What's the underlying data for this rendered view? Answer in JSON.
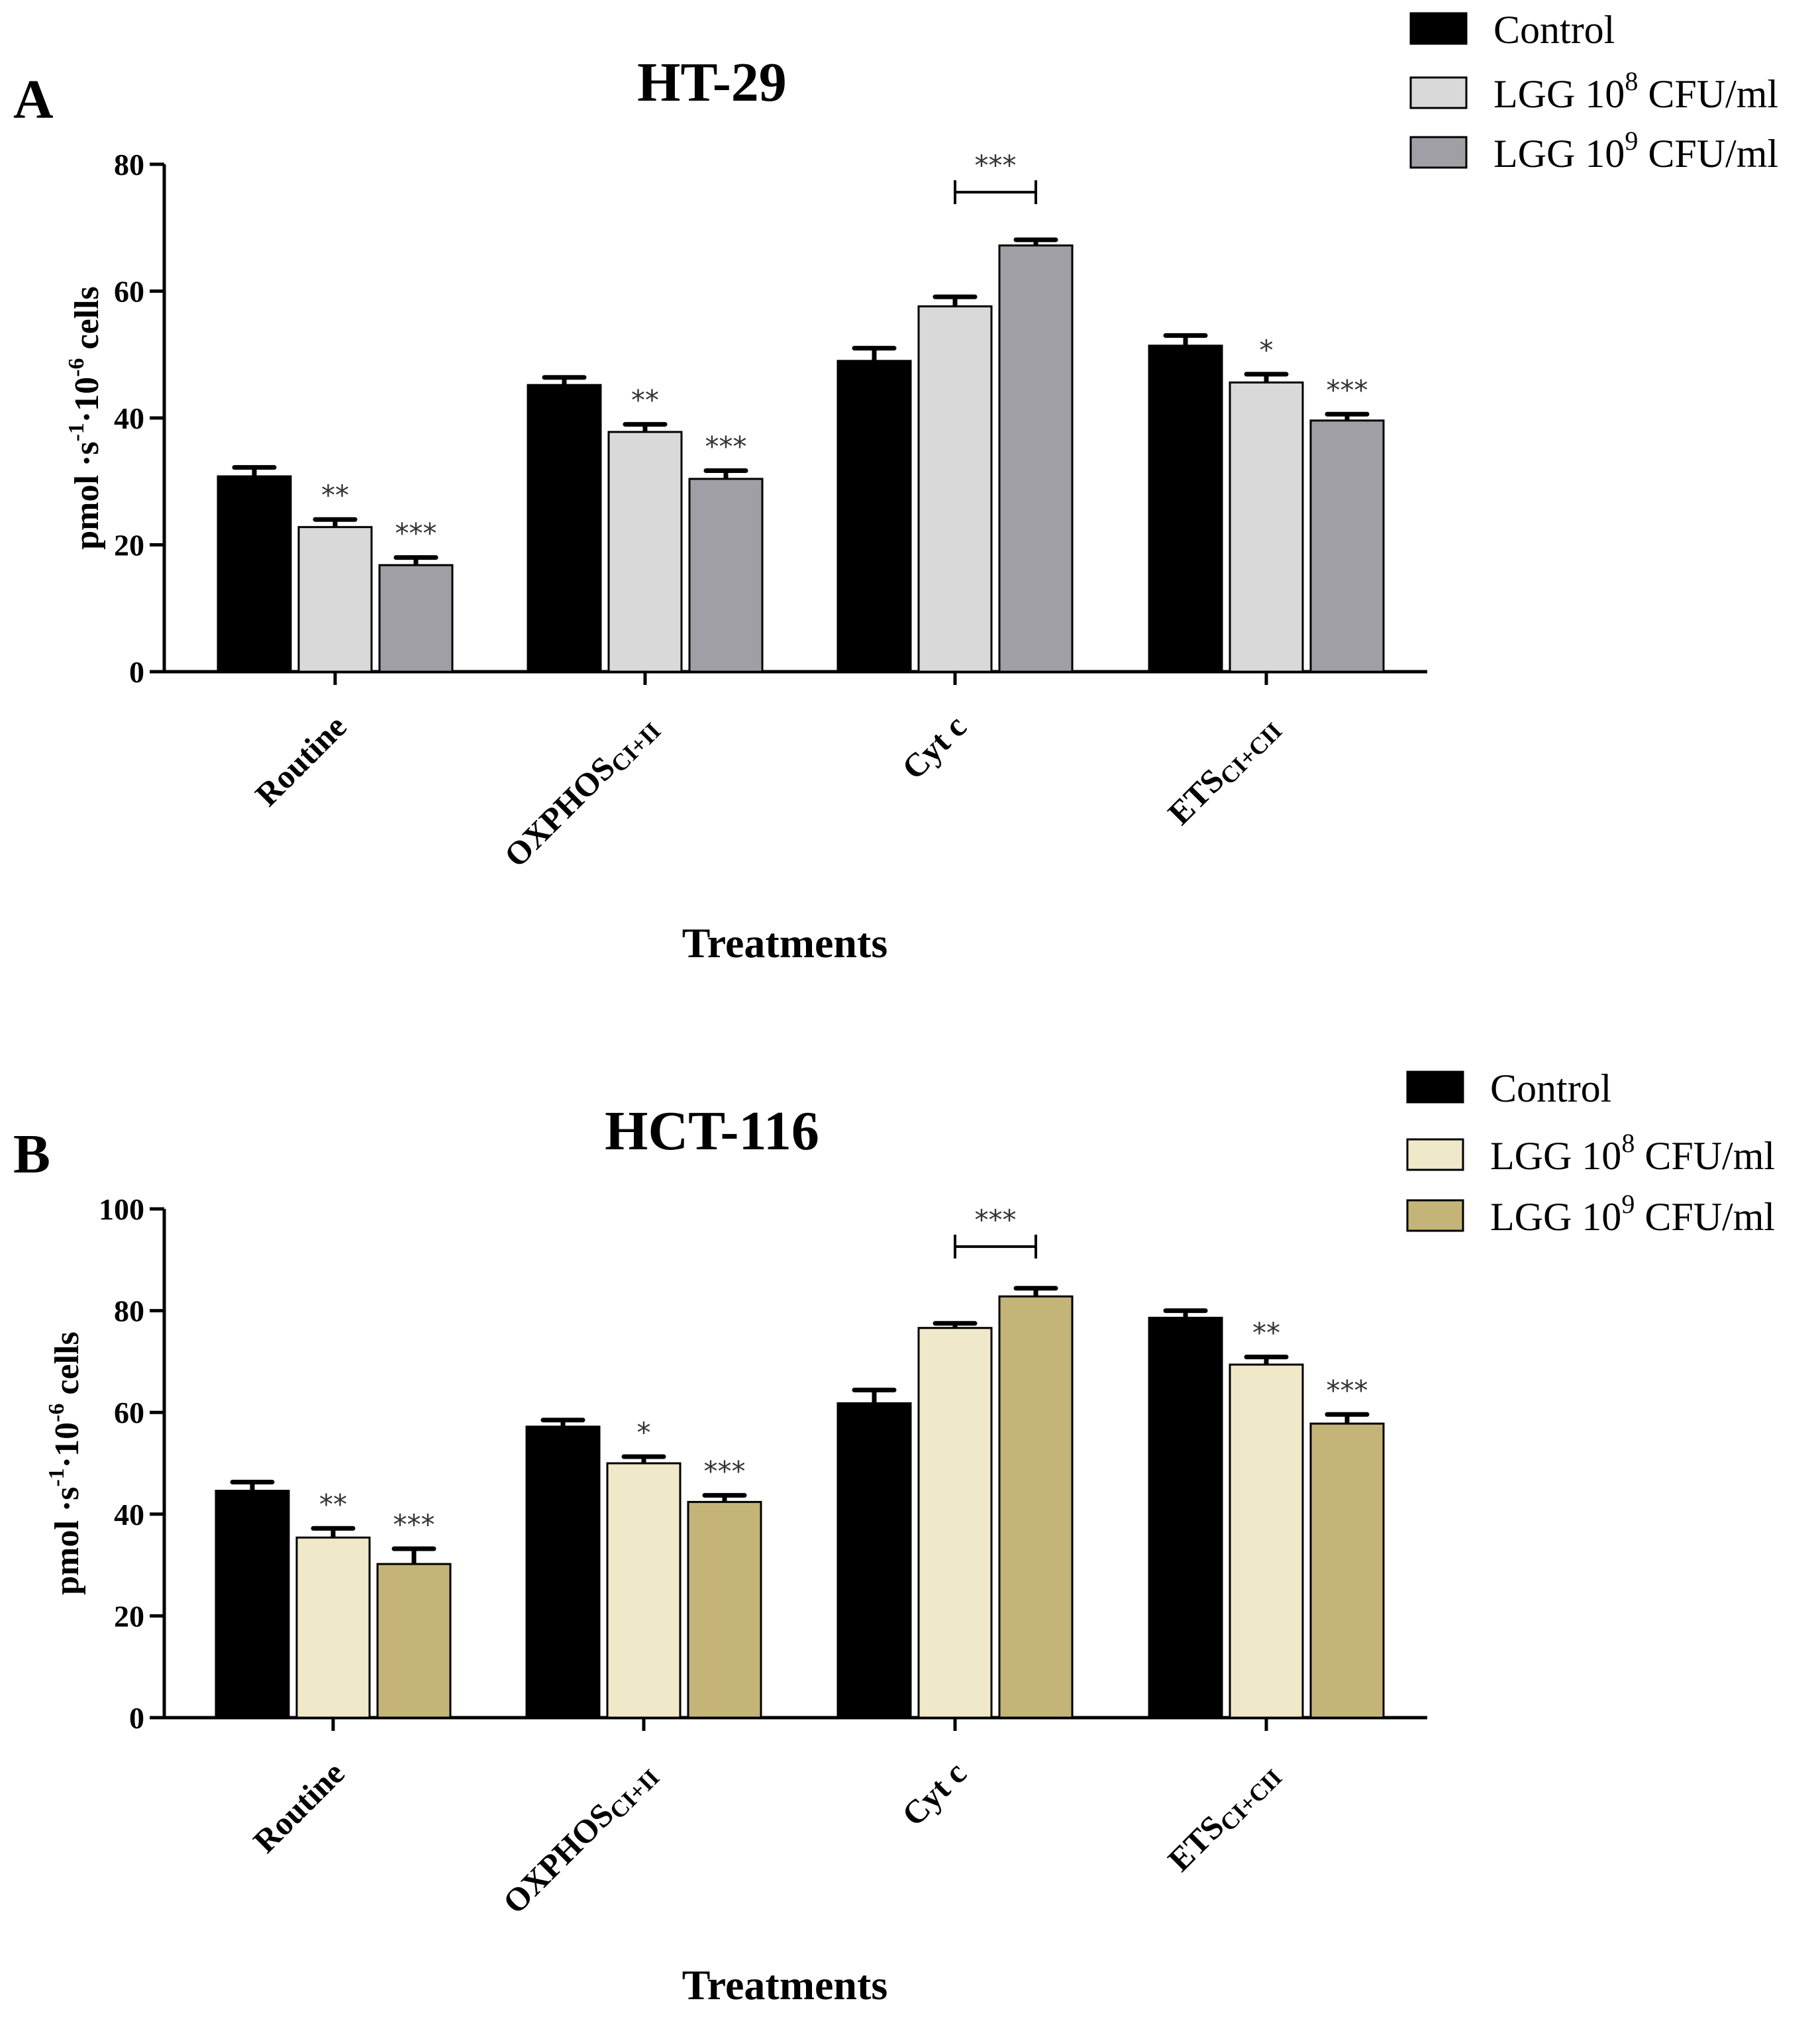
{
  "chart_data": [
    {
      "type": "bar",
      "panel_label": "A",
      "title": "HT-29",
      "xlabel": "Treatments",
      "ylabel": {
        "base": "pmol ·s",
        "exp1": "-1",
        "mid": "·10",
        "exp2": "-6",
        "tail": " cells"
      },
      "ylim": [
        0,
        80
      ],
      "yticks": [
        "0",
        "20",
        "40",
        "60",
        "80"
      ],
      "categories": [
        {
          "main": "Routine",
          "sub": ""
        },
        {
          "main": "OXPHOS",
          "sub": "CI+II"
        },
        {
          "main": "Cyt c",
          "sub": ""
        },
        {
          "main": "ETS",
          "sub": "CI+CII"
        }
      ],
      "series": [
        {
          "name": "Control",
          "legend_base": "Control",
          "legend_exp": "",
          "legend_tail": "",
          "color": "#000000",
          "values": [
            30.8,
            45.2,
            49.0,
            51.4
          ],
          "errors": [
            1.4,
            1.2,
            2.0,
            1.6
          ],
          "sig": [
            "",
            "",
            "",
            ""
          ]
        },
        {
          "name": "LGG 10^8 CFU/ml",
          "legend_base": "LGG 10",
          "legend_exp": "8",
          "legend_tail": " CFU/ml",
          "color": "#d9d9d9",
          "values": [
            22.8,
            37.8,
            57.6,
            45.6
          ],
          "errors": [
            1.2,
            1.2,
            1.5,
            1.3
          ],
          "sig": [
            "**",
            "**",
            "",
            "*"
          ]
        },
        {
          "name": "LGG 10^9 CFU/ml",
          "legend_base": "LGG 10",
          "legend_exp": "9",
          "legend_tail": " CFU/ml",
          "color": "#a09fa6",
          "values": [
            16.8,
            30.4,
            67.2,
            39.6
          ],
          "errors": [
            1.2,
            1.3,
            0.9,
            1.0
          ],
          "sig": [
            "***",
            "***",
            "",
            "***"
          ]
        }
      ],
      "bracket": {
        "category": 2,
        "from_series": 1,
        "to_series": 2,
        "label": "***",
        "y": 75.6
      }
    },
    {
      "type": "bar",
      "panel_label": "B",
      "title": "HCT-116",
      "xlabel": "Treatments",
      "ylabel": {
        "base": "pmol ·s",
        "exp1": "-1",
        "mid": "·10",
        "exp2": "-6",
        "tail": " cells"
      },
      "ylim": [
        0,
        100
      ],
      "yticks": [
        "0",
        "20",
        "40",
        "60",
        "80",
        "100"
      ],
      "categories": [
        {
          "main": "Routine",
          "sub": ""
        },
        {
          "main": "OXPHOS",
          "sub": "CI+II"
        },
        {
          "main": "Cyt c",
          "sub": ""
        },
        {
          "main": "ETS",
          "sub": "CI+CII"
        }
      ],
      "series": [
        {
          "name": "Control",
          "legend_base": "Control",
          "legend_exp": "",
          "legend_tail": "",
          "color": "#000000",
          "values": [
            44.6,
            57.2,
            61.8,
            78.6
          ],
          "errors": [
            1.7,
            1.3,
            2.6,
            1.4
          ],
          "sig": [
            "",
            "",
            "",
            ""
          ]
        },
        {
          "name": "LGG 10^8 CFU/ml",
          "legend_base": "LGG 10",
          "legend_exp": "8",
          "legend_tail": " CFU/ml",
          "color": "#efe8c9",
          "values": [
            35.4,
            50.0,
            76.6,
            69.4
          ],
          "errors": [
            1.8,
            1.3,
            0.9,
            1.5
          ],
          "sig": [
            "**",
            "*",
            "",
            "**"
          ]
        },
        {
          "name": "LGG 10^9 CFU/ml",
          "legend_base": "LGG 10",
          "legend_exp": "9",
          "legend_tail": " CFU/ml",
          "color": "#c4b477",
          "values": [
            30.2,
            42.4,
            82.8,
            57.8
          ],
          "errors": [
            3.0,
            1.3,
            1.6,
            1.8
          ],
          "sig": [
            "***",
            "***",
            "",
            "***"
          ]
        }
      ],
      "bracket": {
        "category": 2,
        "from_series": 1,
        "to_series": 2,
        "label": "***",
        "y": 92.6
      }
    }
  ]
}
